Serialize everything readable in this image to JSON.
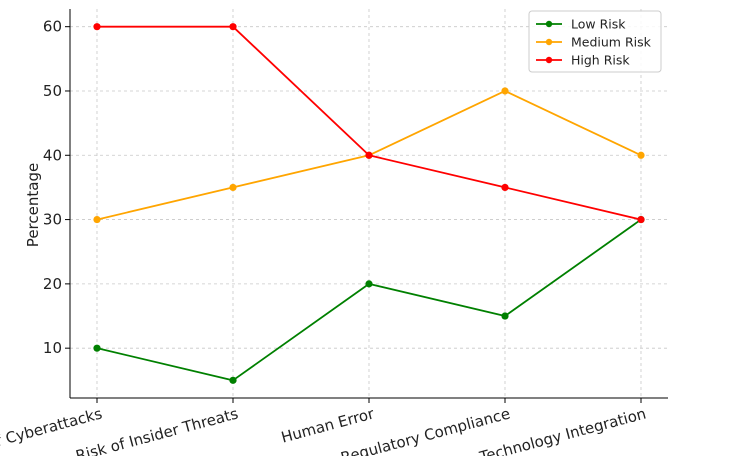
{
  "chart_data": {
    "type": "line",
    "categories": [
      "Risk of Cyberattacks",
      "Risk of Insider Threats",
      "Human Error",
      "Regulatory Compliance",
      "Technology Integration"
    ],
    "series": [
      {
        "name": "Low Risk",
        "color": "#008000",
        "values": [
          10,
          5,
          20,
          15,
          30
        ]
      },
      {
        "name": "Medium Risk",
        "color": "#FFA500",
        "values": [
          30,
          35,
          40,
          50,
          40
        ]
      },
      {
        "name": "High Risk",
        "color": "#FF0000",
        "values": [
          60,
          60,
          40,
          35,
          30
        ]
      }
    ],
    "title": "",
    "xlabel": "",
    "ylabel": "Percentage",
    "ylim": [
      2.25,
      62.75
    ],
    "yticks": [
      10,
      20,
      30,
      40,
      50,
      60
    ],
    "grid": true,
    "legend_position": "top-right"
  }
}
